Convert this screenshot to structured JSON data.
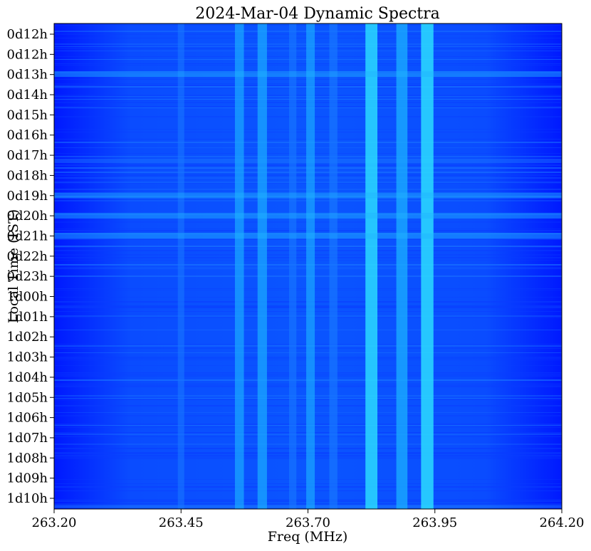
{
  "chart_data": {
    "type": "heatmap",
    "title": "2024-Mar-04 Dynamic Spectra",
    "xlabel": "Freq (MHz)",
    "ylabel": "Local Time (IST)",
    "xlim": [
      263.2,
      264.2
    ],
    "x_ticks": [
      "263.20",
      "263.45",
      "263.70",
      "263.95",
      "264.20"
    ],
    "x_tick_values": [
      263.2,
      263.45,
      263.7,
      263.95,
      264.2
    ],
    "y_ticks": [
      "0d12h",
      "0d12h",
      "0d13h",
      "0d14h",
      "0d15h",
      "0d16h",
      "0d17h",
      "0d18h",
      "0d19h",
      "0d20h",
      "0d21h",
      "0d22h",
      "0d23h",
      "1d00h",
      "1d01h",
      "1d02h",
      "1d03h",
      "1d04h",
      "1d05h",
      "1d06h",
      "1d07h",
      "1d08h",
      "1d09h",
      "1d10h"
    ],
    "colormap": [
      "#0019ff",
      "#0a4cff",
      "#1a8cff",
      "#22c8ff",
      "#2ef5e6"
    ],
    "grid": false,
    "legend": "none",
    "bright_frequency_bands_mhz": [
      {
        "center": 263.565,
        "intensity": 0.55
      },
      {
        "center": 263.61,
        "intensity": 0.6
      },
      {
        "center": 263.67,
        "intensity": 0.35
      },
      {
        "center": 263.705,
        "intensity": 0.5
      },
      {
        "center": 263.75,
        "intensity": 0.45
      },
      {
        "center": 263.825,
        "intensity": 0.9
      },
      {
        "center": 263.885,
        "intensity": 0.8
      },
      {
        "center": 263.935,
        "intensity": 0.95
      },
      {
        "center": 263.45,
        "intensity": 0.25
      }
    ],
    "bright_time_rows": [
      "0d13h",
      "0d19h",
      "0d20h",
      "0d21h"
    ]
  }
}
